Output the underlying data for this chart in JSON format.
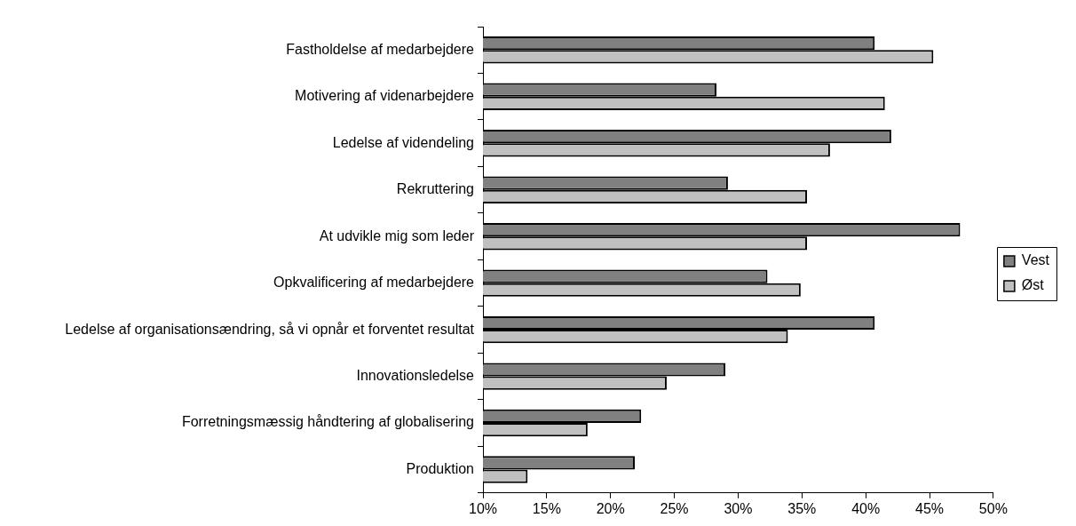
{
  "chart_data": {
    "type": "bar",
    "orientation": "horizontal",
    "categories": [
      "Fastholdelse af medarbejdere",
      "Motivering af videnarbejdere",
      "Ledelse af videndeling",
      "Rekruttering",
      "At udvikle mig som leder",
      "Opkvalificering af medarbejdere",
      "Ledelse af organisationsændring, så vi opnår et forventet resultat",
      "Innovationsledelse",
      "Forretningsmæssig håndtering af globalisering",
      "Produktion"
    ],
    "series": [
      {
        "name": "Vest",
        "color": "#808080",
        "values": [
          40.7,
          28.3,
          42.0,
          29.2,
          47.4,
          32.3,
          40.7,
          29.0,
          22.4,
          21.9
        ]
      },
      {
        "name": "Øst",
        "color": "#c0c0c0",
        "values": [
          45.3,
          41.5,
          37.2,
          35.4,
          35.4,
          34.9,
          33.9,
          24.4,
          18.2,
          13.5
        ]
      }
    ],
    "xlim": [
      10,
      50
    ],
    "xticks": [
      {
        "value": 10,
        "label": "10%"
      },
      {
        "value": 15,
        "label": "15%"
      },
      {
        "value": 20,
        "label": "20%"
      },
      {
        "value": 25,
        "label": "25%"
      },
      {
        "value": 30,
        "label": "30%"
      },
      {
        "value": 35,
        "label": "35%"
      },
      {
        "value": 40,
        "label": "40%"
      },
      {
        "value": 45,
        "label": "45%"
      },
      {
        "value": 50,
        "label": "50%"
      }
    ],
    "grid": false,
    "legend": "right"
  }
}
